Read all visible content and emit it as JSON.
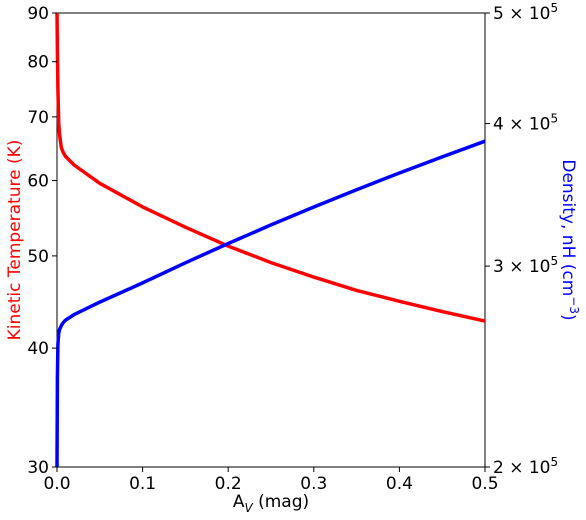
{
  "chart_data": {
    "type": "line",
    "xlabel": "A",
    "xlabel_sub": "V",
    "xlabel_suffix": " (mag)",
    "xlim": [
      0.0,
      0.5
    ],
    "x_ticks": [
      "0.0",
      "0.1",
      "0.2",
      "0.3",
      "0.4",
      "0.5"
    ],
    "x_tick_values": [
      0.0,
      0.1,
      0.2,
      0.3,
      0.4,
      0.5
    ],
    "left_axis": {
      "label": "Kinetic Temperature (K)",
      "color": "#ff0000",
      "scale": "log",
      "ylim": [
        30,
        90
      ],
      "ticks": [
        "30",
        "40",
        "50",
        "60",
        "70",
        "80",
        "90"
      ],
      "tick_values": [
        30,
        40,
        50,
        60,
        70,
        80,
        90
      ]
    },
    "right_axis": {
      "label_main": "Density, nH (cm",
      "label_sup": "−3",
      "label_end": ")",
      "color": "#0000ff",
      "scale": "log",
      "ylim": [
        200000,
        500000
      ],
      "ticks": [
        {
          "value": 200000,
          "mantissa": "2",
          "times": " × 10",
          "exp": "5"
        },
        {
          "value": 300000,
          "mantissa": "3",
          "times": " × 10",
          "exp": "5"
        },
        {
          "value": 400000,
          "mantissa": "4",
          "times": " × 10",
          "exp": "5"
        },
        {
          "value": 500000,
          "mantissa": "5",
          "times": " × 10",
          "exp": "5"
        }
      ]
    },
    "series": [
      {
        "axis": "left",
        "color": "#ff0000",
        "x": [
          0.0,
          0.0005,
          0.001,
          0.002,
          0.003,
          0.005,
          0.007,
          0.01,
          0.02,
          0.05,
          0.1,
          0.15,
          0.2,
          0.25,
          0.3,
          0.35,
          0.4,
          0.45,
          0.5
        ],
        "y": [
          90,
          82,
          75,
          69,
          67,
          65,
          64.3,
          63.6,
          62.3,
          59.6,
          56.3,
          53.6,
          51.2,
          49.2,
          47.5,
          46.0,
          44.8,
          43.7,
          42.7
        ]
      },
      {
        "axis": "right",
        "color": "#0000ff",
        "x": [
          0.0,
          0.0005,
          0.001,
          0.002,
          0.003,
          0.005,
          0.007,
          0.01,
          0.02,
          0.05,
          0.1,
          0.15,
          0.2,
          0.25,
          0.3,
          0.35,
          0.4,
          0.45,
          0.5
        ],
        "y": [
          200000,
          240000,
          256000,
          262000,
          264000,
          266000,
          267500,
          269000,
          272000,
          279000,
          290000,
          302000,
          314000,
          326000,
          338000,
          350000,
          362000,
          374000,
          386000
        ]
      }
    ]
  }
}
